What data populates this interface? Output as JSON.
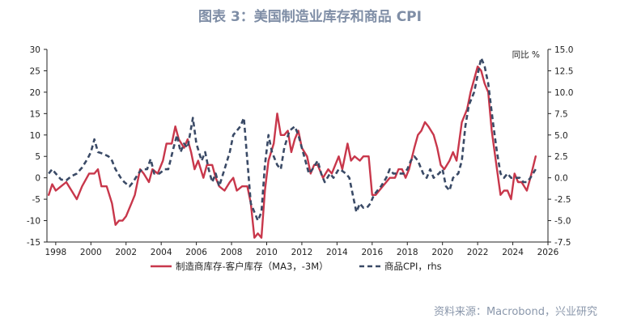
{
  "title": "图表 3：美国制造业库存和商品 CPI",
  "source": "资料来源：Macrobond，兴业研究",
  "chart_data": {
    "type": "line",
    "right_axis_label": "同比 %",
    "xlim": [
      1997.5,
      2026
    ],
    "x_ticks": [
      1998,
      2000,
      2002,
      2004,
      2006,
      2008,
      2010,
      2012,
      2014,
      2016,
      2018,
      2020,
      2022,
      2024,
      2026
    ],
    "left_ylim": [
      -15,
      30
    ],
    "left_ticks": [
      -15,
      -10,
      -5,
      0,
      5,
      10,
      15,
      20,
      25,
      30
    ],
    "right_ylim": [
      -7.5,
      15
    ],
    "right_ticks": [
      -7.5,
      -5.0,
      -2.5,
      0.0,
      2.5,
      5.0,
      7.5,
      10.0,
      12.5,
      15.0
    ],
    "grid": false,
    "legend_position": "bottom",
    "series": [
      {
        "name": "制造商库存-客户库存（MA3，-3M）",
        "axis": "left",
        "color": "#c8374b",
        "style": "solid",
        "points": [
          [
            1997.6,
            -4
          ],
          [
            1997.8,
            -1.5
          ],
          [
            1998.0,
            -3
          ],
          [
            1998.3,
            -2
          ],
          [
            1998.6,
            -1
          ],
          [
            1998.9,
            -3
          ],
          [
            1999.2,
            -5
          ],
          [
            1999.5,
            -2
          ],
          [
            1999.9,
            1
          ],
          [
            2000.2,
            1
          ],
          [
            2000.4,
            2
          ],
          [
            2000.6,
            -2
          ],
          [
            2000.9,
            -2
          ],
          [
            2001.2,
            -6
          ],
          [
            2001.4,
            -11
          ],
          [
            2001.6,
            -10
          ],
          [
            2001.8,
            -10
          ],
          [
            2002.0,
            -9
          ],
          [
            2002.3,
            -6
          ],
          [
            2002.5,
            -4
          ],
          [
            2002.8,
            2
          ],
          [
            2003.0,
            1
          ],
          [
            2003.3,
            -1
          ],
          [
            2003.5,
            2
          ],
          [
            2003.8,
            1
          ],
          [
            2004.1,
            4
          ],
          [
            2004.3,
            8
          ],
          [
            2004.6,
            8
          ],
          [
            2004.8,
            12
          ],
          [
            2005.0,
            9
          ],
          [
            2005.3,
            7
          ],
          [
            2005.5,
            9
          ],
          [
            2005.7,
            6
          ],
          [
            2005.9,
            2
          ],
          [
            2006.1,
            4
          ],
          [
            2006.4,
            0
          ],
          [
            2006.6,
            3
          ],
          [
            2006.9,
            3
          ],
          [
            2007.1,
            0
          ],
          [
            2007.3,
            -2
          ],
          [
            2007.6,
            -3
          ],
          [
            2007.9,
            -1
          ],
          [
            2008.1,
            0
          ],
          [
            2008.3,
            -3
          ],
          [
            2008.6,
            -2
          ],
          [
            2008.9,
            -2
          ],
          [
            2009.1,
            -6
          ],
          [
            2009.3,
            -14
          ],
          [
            2009.5,
            -13
          ],
          [
            2009.7,
            -14
          ],
          [
            2009.9,
            -3
          ],
          [
            2010.1,
            4
          ],
          [
            2010.4,
            8
          ],
          [
            2010.6,
            15
          ],
          [
            2010.8,
            10
          ],
          [
            2011.0,
            10
          ],
          [
            2011.2,
            11
          ],
          [
            2011.4,
            6
          ],
          [
            2011.6,
            9
          ],
          [
            2011.8,
            11
          ],
          [
            2012.0,
            7
          ],
          [
            2012.3,
            5
          ],
          [
            2012.5,
            1
          ],
          [
            2012.7,
            3
          ],
          [
            2012.9,
            3
          ],
          [
            2013.2,
            0
          ],
          [
            2013.5,
            2
          ],
          [
            2013.7,
            1
          ],
          [
            2013.9,
            3
          ],
          [
            2014.1,
            5
          ],
          [
            2014.3,
            2
          ],
          [
            2014.6,
            8
          ],
          [
            2014.8,
            4
          ],
          [
            2015.0,
            5
          ],
          [
            2015.3,
            4
          ],
          [
            2015.5,
            5
          ],
          [
            2015.8,
            5
          ],
          [
            2016.0,
            -4
          ],
          [
            2016.2,
            -4
          ],
          [
            2016.4,
            -3
          ],
          [
            2016.6,
            -2
          ],
          [
            2016.8,
            -1
          ],
          [
            2017.0,
            0
          ],
          [
            2017.3,
            0
          ],
          [
            2017.5,
            2
          ],
          [
            2017.7,
            2
          ],
          [
            2017.9,
            0
          ],
          [
            2018.1,
            2
          ],
          [
            2018.4,
            7
          ],
          [
            2018.6,
            10
          ],
          [
            2018.8,
            11
          ],
          [
            2019.0,
            13
          ],
          [
            2019.2,
            12
          ],
          [
            2019.5,
            10
          ],
          [
            2019.7,
            7
          ],
          [
            2019.9,
            3
          ],
          [
            2020.1,
            2
          ],
          [
            2020.4,
            4
          ],
          [
            2020.6,
            6
          ],
          [
            2020.8,
            4
          ],
          [
            2021.1,
            13
          ],
          [
            2021.4,
            16
          ],
          [
            2021.6,
            20
          ],
          [
            2021.8,
            23
          ],
          [
            2022.0,
            26
          ],
          [
            2022.2,
            25
          ],
          [
            2022.4,
            22
          ],
          [
            2022.6,
            20
          ],
          [
            2022.8,
            11
          ],
          [
            2023.1,
            2
          ],
          [
            2023.3,
            -4
          ],
          [
            2023.5,
            -3
          ],
          [
            2023.7,
            -3
          ],
          [
            2023.9,
            -5
          ],
          [
            2024.1,
            1
          ],
          [
            2024.3,
            -1
          ],
          [
            2024.5,
            -1
          ],
          [
            2024.8,
            -3
          ],
          [
            2025.0,
            0
          ],
          [
            2025.3,
            5
          ]
        ]
      },
      {
        "name": "商品CPI，rhs",
        "axis": "right",
        "color": "#3a4a66",
        "style": "dashed",
        "points": [
          [
            1997.6,
            0.5
          ],
          [
            1997.8,
            1
          ],
          [
            1998.0,
            0.5
          ],
          [
            1998.3,
            -0.2
          ],
          [
            1998.6,
            -0.3
          ],
          [
            1998.9,
            0.2
          ],
          [
            1999.2,
            0.5
          ],
          [
            1999.5,
            1.2
          ],
          [
            1999.8,
            2.2
          ],
          [
            2000.0,
            3
          ],
          [
            2000.2,
            4.5
          ],
          [
            2000.4,
            3
          ],
          [
            2000.7,
            2.8
          ],
          [
            2001.0,
            2.5
          ],
          [
            2001.2,
            2
          ],
          [
            2001.4,
            1
          ],
          [
            2001.7,
            0
          ],
          [
            2001.9,
            -0.5
          ],
          [
            2002.2,
            -1
          ],
          [
            2002.4,
            -0.5
          ],
          [
            2002.7,
            0.5
          ],
          [
            2002.9,
            1
          ],
          [
            2003.2,
            1
          ],
          [
            2003.4,
            2.2
          ],
          [
            2003.6,
            0.5
          ],
          [
            2003.9,
            0.5
          ],
          [
            2004.2,
            1
          ],
          [
            2004.4,
            1
          ],
          [
            2004.7,
            3.5
          ],
          [
            2004.9,
            5
          ],
          [
            2005.1,
            3
          ],
          [
            2005.3,
            4
          ],
          [
            2005.5,
            3.5
          ],
          [
            2005.8,
            7
          ],
          [
            2006.0,
            4
          ],
          [
            2006.3,
            2
          ],
          [
            2006.5,
            3
          ],
          [
            2006.7,
            1
          ],
          [
            2006.9,
            -0.5
          ],
          [
            2007.1,
            0.5
          ],
          [
            2007.3,
            -1
          ],
          [
            2007.6,
            1
          ],
          [
            2007.9,
            3
          ],
          [
            2008.1,
            5
          ],
          [
            2008.3,
            5.5
          ],
          [
            2008.5,
            6
          ],
          [
            2008.7,
            7
          ],
          [
            2008.9,
            2
          ],
          [
            2009.1,
            -3
          ],
          [
            2009.3,
            -4
          ],
          [
            2009.5,
            -5
          ],
          [
            2009.7,
            -4
          ],
          [
            2009.9,
            1.5
          ],
          [
            2010.1,
            5
          ],
          [
            2010.3,
            3
          ],
          [
            2010.6,
            1.5
          ],
          [
            2010.8,
            1
          ],
          [
            2011.0,
            3.5
          ],
          [
            2011.3,
            5.5
          ],
          [
            2011.6,
            6
          ],
          [
            2011.8,
            5
          ],
          [
            2012.0,
            3.5
          ],
          [
            2012.2,
            2
          ],
          [
            2012.4,
            0.5
          ],
          [
            2012.6,
            1
          ],
          [
            2012.9,
            2
          ],
          [
            2013.1,
            0.5
          ],
          [
            2013.3,
            -0.5
          ],
          [
            2013.6,
            0.5
          ],
          [
            2013.8,
            0
          ],
          [
            2014.1,
            1
          ],
          [
            2014.3,
            0.8
          ],
          [
            2014.5,
            0.5
          ],
          [
            2014.7,
            0
          ],
          [
            2014.9,
            -2
          ],
          [
            2015.1,
            -4
          ],
          [
            2015.3,
            -3
          ],
          [
            2015.5,
            -3.5
          ],
          [
            2015.7,
            -3.5
          ],
          [
            2015.9,
            -3
          ],
          [
            2016.1,
            -2
          ],
          [
            2016.3,
            -1.5
          ],
          [
            2016.5,
            -1
          ],
          [
            2016.8,
            0
          ],
          [
            2017.0,
            1
          ],
          [
            2017.2,
            0.5
          ],
          [
            2017.5,
            0.5
          ],
          [
            2017.8,
            0.5
          ],
          [
            2018.0,
            1
          ],
          [
            2018.2,
            2
          ],
          [
            2018.4,
            2.5
          ],
          [
            2018.6,
            2
          ],
          [
            2018.9,
            0.5
          ],
          [
            2019.1,
            0
          ],
          [
            2019.3,
            1
          ],
          [
            2019.5,
            0
          ],
          [
            2019.8,
            0.5
          ],
          [
            2020.0,
            1
          ],
          [
            2020.2,
            -1
          ],
          [
            2020.4,
            -1.5
          ],
          [
            2020.6,
            0
          ],
          [
            2020.9,
            0.5
          ],
          [
            2021.1,
            2
          ],
          [
            2021.3,
            6
          ],
          [
            2021.5,
            8.5
          ],
          [
            2021.8,
            10
          ],
          [
            2022.0,
            12
          ],
          [
            2022.2,
            14
          ],
          [
            2022.4,
            13
          ],
          [
            2022.6,
            11
          ],
          [
            2022.9,
            6
          ],
          [
            2023.1,
            3
          ],
          [
            2023.3,
            0.5
          ],
          [
            2023.5,
            0
          ],
          [
            2023.7,
            0.5
          ],
          [
            2023.9,
            0
          ],
          [
            2024.1,
            0
          ],
          [
            2024.4,
            0
          ],
          [
            2024.6,
            -0.5
          ],
          [
            2024.8,
            -0.5
          ],
          [
            2025.0,
            0
          ],
          [
            2025.3,
            1
          ]
        ]
      }
    ]
  }
}
